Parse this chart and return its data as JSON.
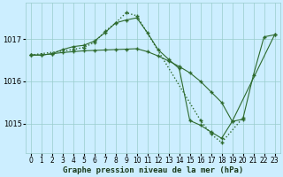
{
  "bg_color": "#cceeff",
  "grid_color": "#99cccc",
  "line_color": "#2d6a2d",
  "title": "Graphe pression niveau de la mer (hPa)",
  "hours": [
    0,
    1,
    2,
    3,
    4,
    5,
    6,
    7,
    8,
    9,
    10,
    11,
    12,
    13,
    14,
    15,
    16,
    17,
    18,
    19,
    20,
    21,
    22,
    23
  ],
  "yticks": [
    1015,
    1016,
    1017
  ],
  "ylim": [
    1014.3,
    1017.85
  ],
  "xlim": [
    -0.5,
    23.5
  ],
  "series1_x": [
    0,
    1,
    2,
    3,
    4,
    5,
    6,
    7,
    8,
    9,
    10,
    11,
    12,
    13,
    14,
    15,
    16,
    17,
    18,
    19,
    23
  ],
  "series1_y": [
    1016.62,
    1016.62,
    1016.65,
    1016.68,
    1016.7,
    1016.72,
    1016.73,
    1016.74,
    1016.75,
    1016.76,
    1016.77,
    1016.7,
    1016.6,
    1016.48,
    1016.35,
    1016.2,
    1016.0,
    1015.75,
    1015.5,
    1015.05,
    1017.1
  ],
  "series2_x": [
    0,
    1,
    2,
    3,
    4,
    5,
    6,
    7,
    8,
    9,
    10,
    11,
    12,
    13,
    14,
    15,
    16,
    17,
    18,
    19,
    20,
    21,
    22,
    23
  ],
  "series2_y": [
    1016.62,
    1016.62,
    1016.65,
    1016.75,
    1016.82,
    1016.85,
    1016.95,
    1017.15,
    1017.38,
    1017.45,
    1017.5,
    1017.15,
    1016.75,
    1016.52,
    1016.3,
    1015.07,
    1014.96,
    1014.8,
    1014.65,
    1015.05,
    1015.1,
    1016.15,
    1017.05,
    1017.1
  ],
  "series3_x": [
    0,
    4,
    5,
    6,
    7,
    8,
    9,
    10,
    16,
    17,
    18,
    20
  ],
  "series3_y": [
    1016.62,
    1016.75,
    1016.8,
    1016.92,
    1017.18,
    1017.38,
    1017.62,
    1017.55,
    1015.08,
    1014.75,
    1014.55,
    1015.13
  ],
  "tick_fontsize": 5.5,
  "label_fontsize": 6.5
}
